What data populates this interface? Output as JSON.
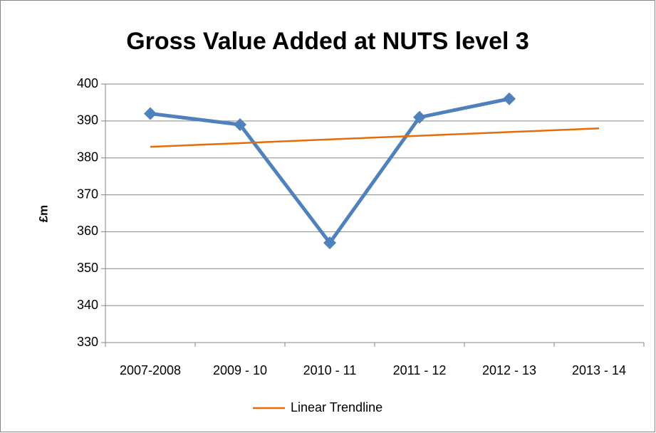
{
  "chart_data": {
    "type": "line",
    "title": "Gross Value Added at NUTS level 3",
    "y_label": "£m",
    "categories": [
      "2007-2008",
      "2009 - 10",
      "2010 - 11",
      "2011 - 12",
      "2012 - 13",
      "2013 - 14"
    ],
    "series": [
      {
        "color": "#4f81bd",
        "values": [
          392,
          389,
          357,
          391,
          396,
          null
        ]
      },
      {
        "name": "Linear Trendline",
        "color": "#e46c0a",
        "values": [
          383,
          384,
          385,
          386,
          387,
          388
        ]
      }
    ],
    "ylim": [
      330,
      400
    ],
    "yticks": [
      330,
      340,
      350,
      360,
      370,
      380,
      390,
      400
    ],
    "grid": true,
    "legend": "bottom"
  }
}
